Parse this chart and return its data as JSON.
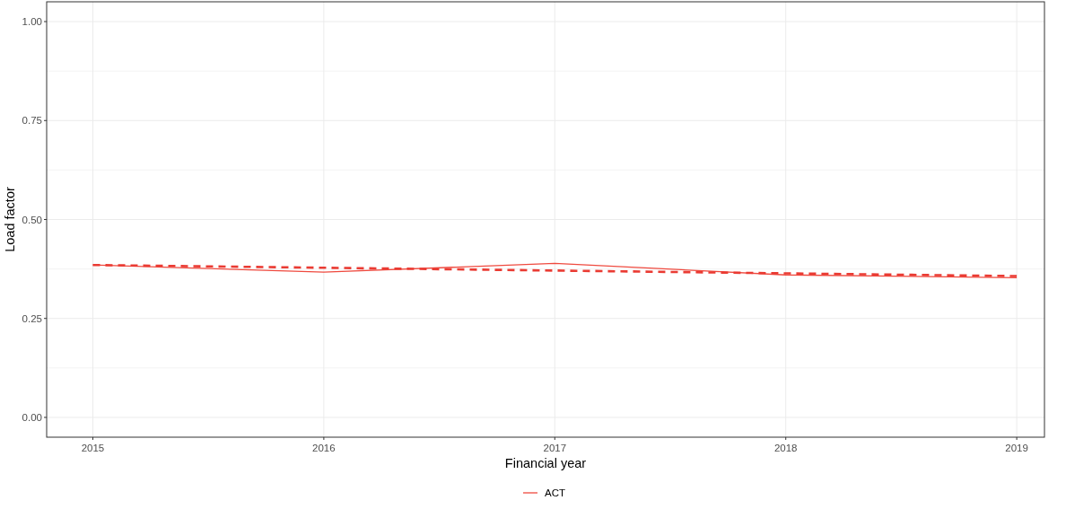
{
  "chart_data": {
    "type": "line",
    "xlabel": "Financial year",
    "ylabel": "Load factor",
    "xlim": [
      2014.8,
      2019.12
    ],
    "xticks": [
      2015,
      2016,
      2017,
      2018,
      2019
    ],
    "ylim": [
      -0.05,
      1.05
    ],
    "yticks": [
      {
        "value": 0,
        "label": "0.00"
      },
      {
        "value": 0.125,
        "label": null
      },
      {
        "value": 0.25,
        "label": "0.25"
      },
      {
        "value": 0.375,
        "label": null
      },
      {
        "value": 0.5,
        "label": "0.50"
      },
      {
        "value": 0.625,
        "label": null
      },
      {
        "value": 0.75,
        "label": "0.75"
      },
      {
        "value": 0.875,
        "label": null
      },
      {
        "value": 1,
        "label": "1.00"
      }
    ],
    "grid": true,
    "legend": "bottom",
    "series": [
      {
        "name": "ACT",
        "color": "#ef4a3f",
        "x": [
          2015,
          2016,
          2017,
          2018,
          2019
        ],
        "values": [
          0.385,
          0.367,
          0.389,
          0.36,
          0.353
        ]
      },
      {
        "type": "line",
        "color": "#ea3b33",
        "line_style": "dashed",
        "x": [
          2015,
          2019
        ],
        "values": [
          0.385,
          0.357
        ]
      }
    ]
  }
}
